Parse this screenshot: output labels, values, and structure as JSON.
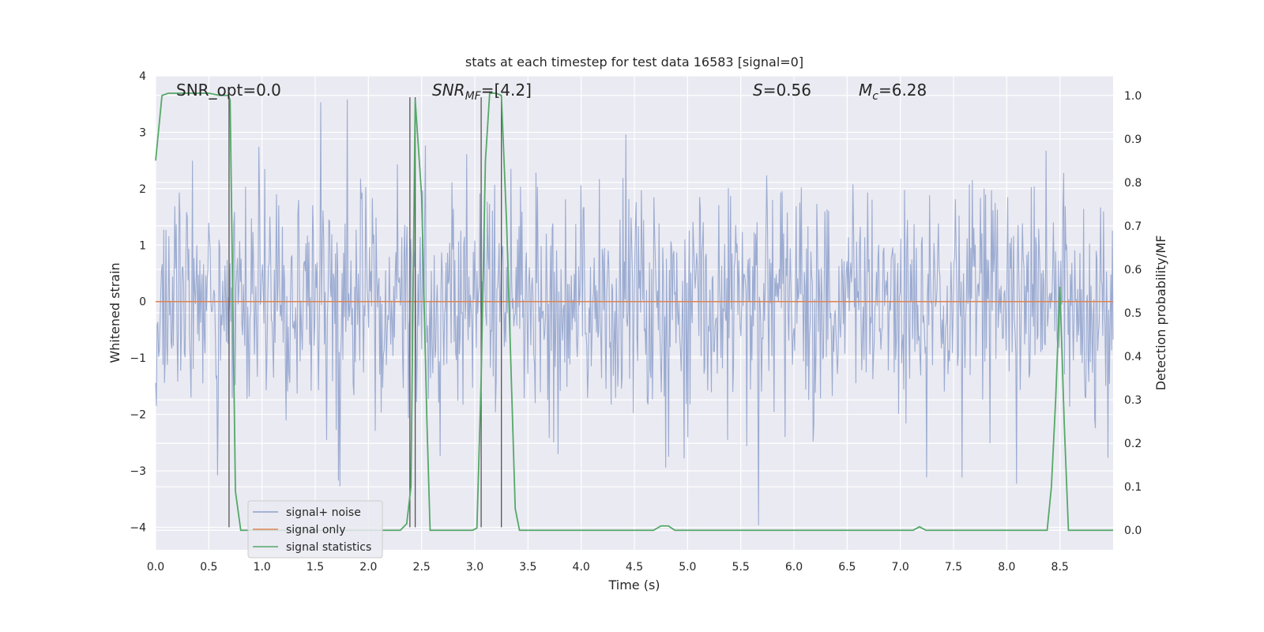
{
  "chart_data": {
    "type": "line",
    "title": "stats at each timestep for test data 16583 [signal=0]",
    "xlabel": "Time (s)",
    "ylabel": "Whitened strain",
    "y2label": "Detection probability/MF",
    "xlim": [
      0.0,
      9.0
    ],
    "ylim": [
      -4.4,
      4.0
    ],
    "y2lim": [
      -0.045,
      1.045
    ],
    "grid": true,
    "legend_position": "lower-left",
    "x_ticks": [
      0.0,
      0.5,
      1.0,
      1.5,
      2.0,
      2.5,
      3.0,
      3.5,
      4.0,
      4.5,
      5.0,
      5.5,
      6.0,
      6.5,
      7.0,
      7.5,
      8.0,
      8.5
    ],
    "x_tick_labels": [
      "0.0",
      "0.5",
      "1.0",
      "1.5",
      "2.0",
      "2.5",
      "3.0",
      "3.5",
      "4.0",
      "4.5",
      "5.0",
      "5.5",
      "6.0",
      "6.5",
      "7.0",
      "7.5",
      "8.0",
      "8.5"
    ],
    "y_ticks": [
      4,
      3,
      2,
      1,
      0,
      -1,
      -2,
      -3,
      -4
    ],
    "y_tick_labels": [
      "4",
      "3",
      "2",
      "1",
      "0",
      "−1",
      "−2",
      "−3",
      "−4"
    ],
    "y2_ticks": [
      1.0,
      0.9,
      0.8,
      0.7,
      0.6,
      0.5,
      0.4,
      0.3,
      0.2,
      0.1,
      0.0
    ],
    "y2_tick_labels": [
      "1.0",
      "0.9",
      "0.8",
      "0.7",
      "0.6",
      "0.5",
      "0.4",
      "0.3",
      "0.2",
      "0.1",
      "0.0"
    ],
    "annotations": {
      "snr_opt": "SNR_opt=0.0",
      "snr_mf_base": "SNR",
      "snr_mf_sub": "MF",
      "snr_mf_value": "=[4.2]",
      "s_sym": "S",
      "s_value": "=0.56",
      "mc_base": "M",
      "mc_sub": "c",
      "mc_value": "=6.28"
    },
    "vertical_lines_x": [
      0.69,
      2.39,
      2.44,
      3.06,
      3.25
    ],
    "vertical_lines_range": [
      -4.0,
      3.62
    ],
    "series": [
      {
        "name": "signal+ noise",
        "color": "#8da0cb",
        "noise_sigma": 0.85,
        "noise_clip": [
          -4.0,
          3.6
        ],
        "samples": 1300
      },
      {
        "name": "signal only",
        "color": "#dd8452",
        "values_constant": 0.0
      },
      {
        "name": "signal statistics",
        "color": "#55a868",
        "axis": "right",
        "x": [
          0.0,
          0.06,
          0.12,
          0.2,
          0.3,
          0.4,
          0.5,
          0.6,
          0.68,
          0.7,
          0.75,
          0.8,
          0.9,
          1.0,
          1.5,
          2.0,
          2.3,
          2.36,
          2.4,
          2.44,
          2.5,
          2.55,
          2.58,
          2.7,
          2.8,
          2.98,
          3.02,
          3.06,
          3.1,
          3.14,
          3.2,
          3.25,
          3.3,
          3.38,
          3.42,
          3.46,
          3.5,
          4.0,
          4.5,
          4.68,
          4.75,
          4.82,
          4.88,
          5.0,
          6.0,
          7.0,
          7.12,
          7.18,
          7.24,
          7.3,
          7.5,
          8.0,
          8.38,
          8.42,
          8.46,
          8.5,
          8.54,
          8.58,
          8.7,
          9.0
        ],
        "values": [
          0.85,
          1.0,
          1.005,
          1.005,
          1.005,
          1.005,
          1.005,
          1.0,
          1.0,
          0.99,
          0.09,
          0.0,
          0.0,
          0.0,
          0.0,
          0.0,
          0.0,
          0.015,
          0.1,
          0.99,
          0.77,
          0.25,
          0.0,
          0.0,
          0.0,
          0.0,
          0.005,
          0.35,
          0.85,
          1.005,
          1.005,
          1.0,
          0.7,
          0.05,
          0.0,
          0.0,
          0.0,
          0.0,
          0.0,
          0.0,
          0.01,
          0.01,
          0.0,
          0.0,
          0.0,
          0.0,
          0.0,
          0.008,
          0.0,
          0.0,
          0.0,
          0.0,
          0.0,
          0.1,
          0.3,
          0.56,
          0.25,
          0.0,
          0.0,
          0.0
        ]
      }
    ]
  }
}
